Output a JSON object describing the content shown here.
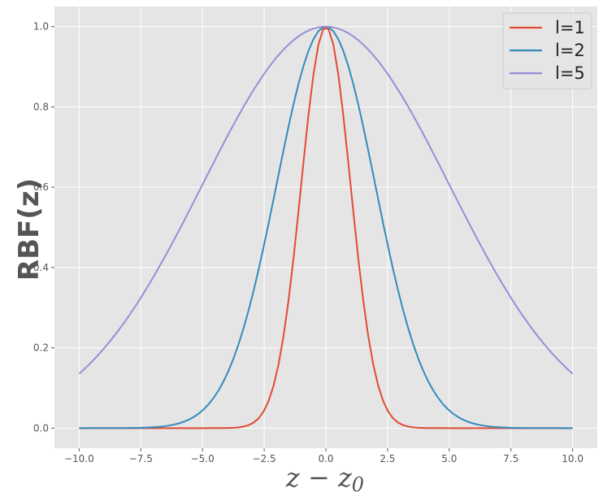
{
  "chart_data": {
    "type": "line",
    "title": "",
    "xlabel_main": "z − z",
    "xlabel_sub": "0",
    "ylabel": "RBF(z)",
    "xlim": [
      -11,
      11
    ],
    "ylim": [
      -0.05,
      1.05
    ],
    "xticks": [
      -10,
      -7.5,
      -5,
      -2.5,
      0,
      2.5,
      5,
      7.5,
      10
    ],
    "xtick_labels": [
      "−10.0",
      "−7.5",
      "−5.0",
      "−2.5",
      "0.0",
      "2.5",
      "5.0",
      "7.5",
      "10.0"
    ],
    "yticks": [
      0,
      0.2,
      0.4,
      0.6,
      0.8,
      1.0
    ],
    "ytick_labels": [
      "0.0",
      "0.2",
      "0.4",
      "0.6",
      "0.8",
      "1.0"
    ],
    "grid": true,
    "legend_position": "top-right",
    "x_range": [
      -10,
      10
    ],
    "num_points": 100,
    "function": "exp(-x^2 / (2 l^2))",
    "series": [
      {
        "name": "l=1",
        "length_scale": 1,
        "color": "#E24A33"
      },
      {
        "name": "l=2",
        "length_scale": 2,
        "color": "#348ABD"
      },
      {
        "name": "l=5",
        "length_scale": 5,
        "color": "#988ED5"
      }
    ]
  }
}
